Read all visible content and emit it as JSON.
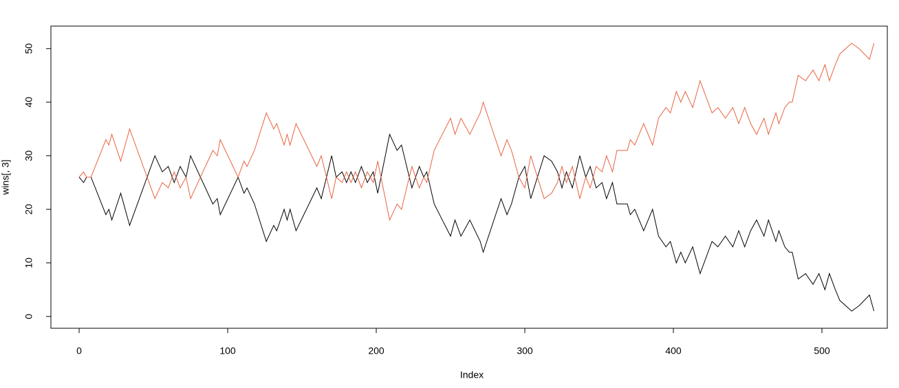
{
  "chart_data": {
    "type": "line",
    "xlabel": "Index",
    "ylabel": "wins[, 3]",
    "x": [
      0,
      3,
      5,
      8,
      18,
      20,
      22,
      28,
      34,
      51,
      56,
      60,
      64,
      68,
      72,
      75,
      90,
      93,
      95,
      107,
      111,
      113,
      118,
      126,
      131,
      133,
      138,
      140,
      142,
      146,
      160,
      163,
      170,
      173,
      177,
      180,
      183,
      186,
      190,
      194,
      198,
      201,
      209,
      214,
      217,
      224,
      229,
      232,
      234,
      239,
      250,
      253,
      257,
      261,
      263,
      270,
      272,
      284,
      288,
      291,
      296,
      300,
      304,
      313,
      318,
      322,
      325,
      328,
      332,
      337,
      341,
      344,
      348,
      352,
      355,
      359,
      362,
      369,
      371,
      374,
      380,
      386,
      390,
      395,
      398,
      402,
      405,
      408,
      413,
      418,
      426,
      430,
      435,
      440,
      444,
      448,
      452,
      456,
      461,
      464,
      469,
      471,
      475,
      478,
      480,
      484,
      489,
      494,
      498,
      502,
      505,
      509,
      512,
      520,
      525,
      532,
      535
    ],
    "series": [
      {
        "color": "#000000",
        "values": [
          26,
          25,
          26,
          26,
          19,
          20,
          18,
          23,
          17,
          30,
          27,
          28,
          25,
          28,
          26,
          30,
          21,
          22,
          19,
          26,
          23,
          24,
          21,
          14,
          17,
          16,
          20,
          18,
          20,
          16,
          24,
          22,
          30,
          26,
          27,
          25,
          27,
          25,
          28,
          25,
          27,
          23,
          34,
          31,
          32,
          24,
          28,
          26,
          27,
          21,
          15,
          18,
          15,
          17,
          18,
          14,
          12,
          22,
          19,
          21,
          26,
          28,
          22,
          30,
          29,
          27,
          24,
          27,
          24,
          30,
          26,
          28,
          24,
          25,
          22,
          25,
          21,
          21,
          19,
          20,
          16,
          20,
          15,
          13,
          14,
          10,
          12,
          10,
          13,
          8,
          14,
          13,
          15,
          13,
          16,
          13,
          16,
          18,
          15,
          18,
          14,
          16,
          13,
          12,
          12,
          7,
          8,
          6,
          8,
          5,
          8,
          5,
          3,
          1,
          2,
          4,
          1
        ]
      },
      {
        "color": "#e8623f",
        "values": [
          26,
          27,
          26,
          26,
          33,
          32,
          34,
          29,
          35,
          22,
          25,
          24,
          27,
          24,
          26,
          22,
          31,
          30,
          33,
          26,
          29,
          28,
          31,
          38,
          35,
          36,
          32,
          34,
          32,
          36,
          28,
          30,
          22,
          26,
          25,
          27,
          25,
          27,
          24,
          27,
          25,
          29,
          18,
          21,
          20,
          28,
          24,
          26,
          25,
          31,
          37,
          34,
          37,
          35,
          34,
          38,
          40,
          30,
          33,
          31,
          26,
          24,
          30,
          22,
          23,
          25,
          28,
          25,
          28,
          22,
          26,
          24,
          28,
          27,
          30,
          27,
          31,
          31,
          33,
          32,
          36,
          32,
          37,
          39,
          38,
          42,
          40,
          42,
          39,
          44,
          38,
          39,
          37,
          39,
          36,
          39,
          36,
          34,
          37,
          34,
          38,
          36,
          39,
          40,
          40,
          45,
          44,
          46,
          44,
          47,
          44,
          47,
          49,
          51,
          50,
          48,
          51
        ]
      }
    ],
    "xlim": [
      -19,
      544
    ],
    "ylim": [
      -2.2,
      54.2
    ],
    "xticks": [
      0,
      100,
      200,
      300,
      400,
      500
    ],
    "yticks": [
      0,
      10,
      20,
      30,
      40,
      50
    ]
  }
}
